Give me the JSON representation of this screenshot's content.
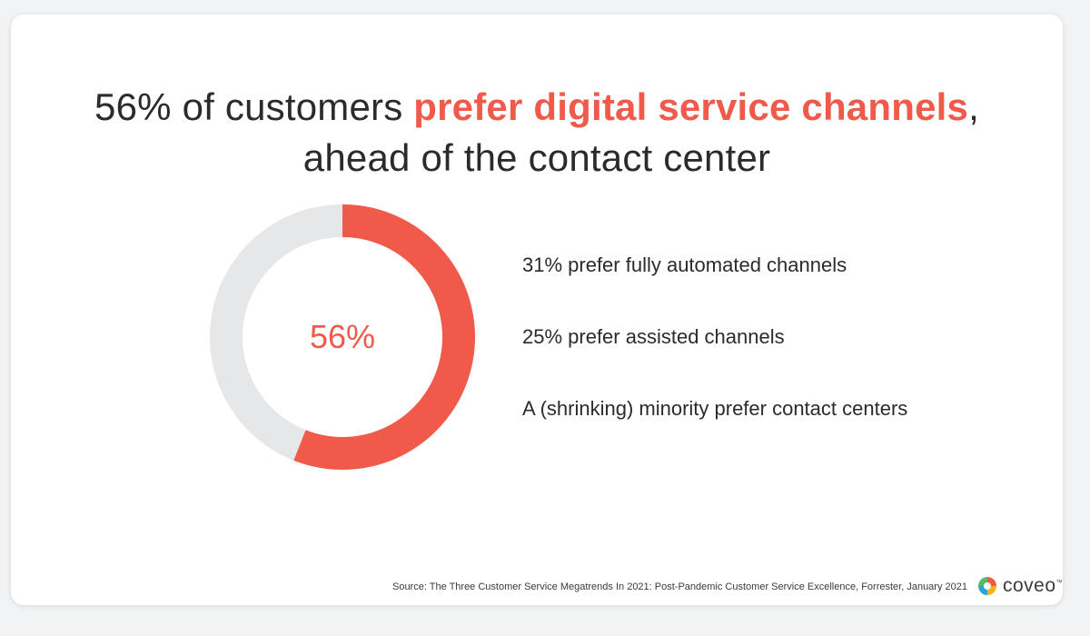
{
  "headline": {
    "before": "56% of customers ",
    "highlight": "prefer digital service channels",
    "after": ",",
    "line2": "ahead of the contact center"
  },
  "chart_data": {
    "type": "pie",
    "style": "donut",
    "center_label": "56%",
    "values": [
      56,
      44
    ],
    "colors": [
      "#f05a4a",
      "#e5e7e8"
    ]
  },
  "stats": [
    "31% prefer fully automated channels",
    "25% prefer assisted channels",
    "A (shrinking) minority prefer contact centers"
  ],
  "footer": {
    "source": "Source: The Three Customer Service Megatrends In 2021: Post-Pandemic Customer Service Excellence, Forrester, January 2021",
    "logo_text": "coveo",
    "logo_mark": "™",
    "logo_icon": "coveo-logo-icon",
    "logo_colors": [
      "#f05a4a",
      "#f6b419",
      "#2fa2db",
      "#55bb66"
    ]
  },
  "theme": {
    "accent": "#f05a4a",
    "track": "#e5e7e8",
    "text": "#2b2b2b"
  }
}
